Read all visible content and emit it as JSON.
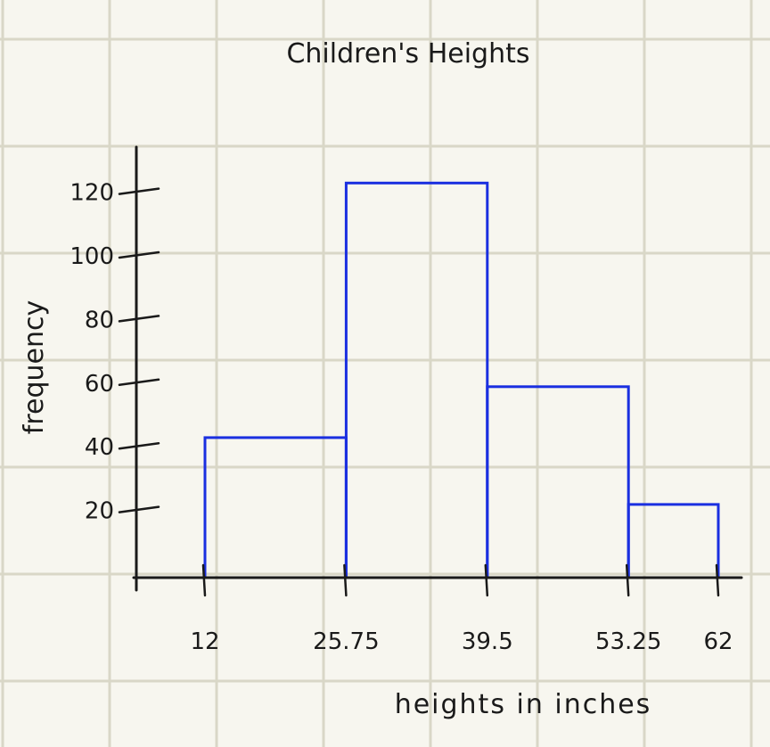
{
  "chart_data": {
    "type": "bar",
    "title": "Children's Heights",
    "xlabel": "heights in inches",
    "ylabel": "frequency",
    "bins": [
      {
        "from": 12,
        "to": 25.75,
        "value": 44
      },
      {
        "from": 25.75,
        "to": 39.5,
        "value": 124
      },
      {
        "from": 39.5,
        "to": 53.25,
        "value": 60
      },
      {
        "from": 53.25,
        "to": 62,
        "value": 23
      }
    ],
    "x_ticks": [
      "12",
      "25.75",
      "39.5",
      "53.25",
      "62"
    ],
    "y_ticks": [
      "20",
      "40",
      "60",
      "80",
      "100",
      "120"
    ],
    "ylim": [
      0,
      130
    ],
    "grid": true,
    "colors": {
      "bars": "#1a2fe0",
      "axes": "#1a1a1a",
      "grid": "#d9d7c7",
      "background": "#f7f6ef"
    }
  }
}
